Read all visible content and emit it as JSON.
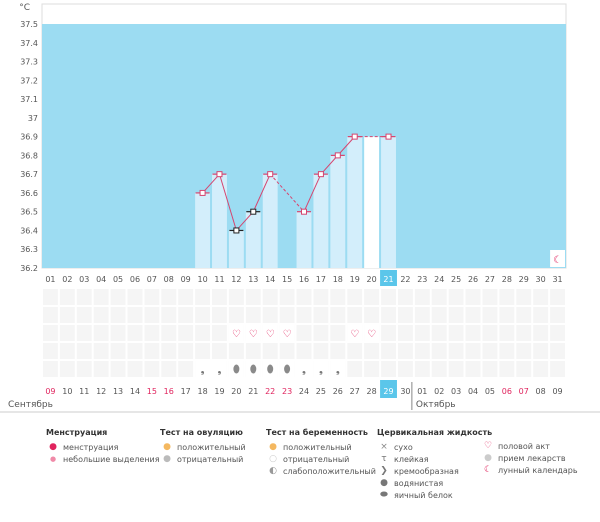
{
  "chart_data": {
    "type": "bar",
    "title": "",
    "ylabel": "°C",
    "ylim": [
      36.2,
      37.5
    ],
    "y_ticks": [
      "37.5",
      "37.4",
      "37.3",
      "37.2",
      "37.1",
      "37",
      "36.9",
      "36.8",
      "36.7",
      "36.6",
      "36.5",
      "36.4",
      "36.3",
      "36.2"
    ],
    "x_top_labels": [
      "01",
      "02",
      "03",
      "04",
      "05",
      "06",
      "07",
      "08",
      "09",
      "10",
      "11",
      "12",
      "13",
      "14",
      "15",
      "16",
      "17",
      "18",
      "19",
      "20",
      "21",
      "22",
      "23",
      "24",
      "25",
      "26",
      "27",
      "28",
      "29",
      "30",
      "31"
    ],
    "selected_top": "21",
    "temperature_days": [
      "10",
      "11",
      "12",
      "13",
      "14",
      "16",
      "17",
      "18",
      "19",
      "21"
    ],
    "temperatures": [
      36.6,
      36.7,
      36.4,
      36.5,
      36.7,
      36.5,
      36.7,
      36.8,
      36.9,
      36.9
    ],
    "white_bar_days": [
      "20"
    ],
    "white_bar_values": [
      36.9
    ],
    "intercourse_days": [
      "12",
      "13",
      "14",
      "15",
      "19",
      "20"
    ],
    "cervical_mucus": [
      {
        "day": "10",
        "type": "creamy"
      },
      {
        "day": "11",
        "type": "creamy"
      },
      {
        "day": "12",
        "type": "watery"
      },
      {
        "day": "13",
        "type": "watery"
      },
      {
        "day": "14",
        "type": "watery"
      },
      {
        "day": "15",
        "type": "watery"
      },
      {
        "day": "16",
        "type": "creamy"
      },
      {
        "day": "17",
        "type": "creamy"
      },
      {
        "day": "18",
        "type": "creamy"
      }
    ],
    "lunar_marker_day": "31",
    "cycle_day_labels": [
      "09",
      "10",
      "11",
      "12",
      "13",
      "14",
      "15",
      "16",
      "17",
      "18",
      "19",
      "20",
      "21",
      "22",
      "23",
      "24",
      "25",
      "26",
      "27",
      "28",
      "29",
      "30",
      "01",
      "02",
      "03",
      "04",
      "05",
      "06",
      "07",
      "08",
      "09"
    ],
    "cycle_day_highlight": [
      "09",
      "15",
      "16",
      "22",
      "23",
      "06",
      "07"
    ],
    "cycle_selected": "29",
    "month_left": "Сентябрь",
    "month_right": "Октябрь"
  },
  "legend": {
    "menstruation": {
      "title": "Менструация",
      "items": [
        "менструация",
        "небольшие выделения"
      ]
    },
    "ovulation_test": {
      "title": "Тест на овуляцию",
      "items": [
        "положительный",
        "отрицательный"
      ]
    },
    "pregnancy_test": {
      "title": "Тест на беременность",
      "items": [
        "положительный",
        "отрицательный",
        "слабоположительный"
      ]
    },
    "cervical": {
      "title": "Цервикальная жидкость",
      "items": [
        "сухо",
        "клейкая",
        "кремообразная",
        "водянистая",
        "яичный белок"
      ]
    },
    "other": {
      "items": [
        "половой акт",
        "прием лекарств",
        "лунный календарь"
      ]
    }
  },
  "colors": {
    "plot_bg": "#9cdcf2",
    "bar_fill": "#d3eefb",
    "line": "#d6456f",
    "highlight": "#e0245e",
    "selected_bg": "#5bc6ea"
  }
}
